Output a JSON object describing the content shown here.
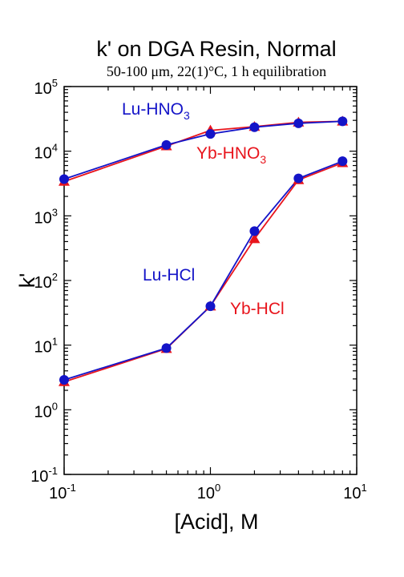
{
  "chart_data": {
    "type": "line",
    "title": "k' on DGA Resin, Normal",
    "subtitle": "50-100 μm, 22(1)°C, 1 h equilibration",
    "xlabel": "[Acid], M",
    "ylabel": "k'",
    "x_scale": "log",
    "y_scale": "log",
    "xlim": [
      0.1,
      10
    ],
    "ylim": [
      0.1,
      100000
    ],
    "x_ticks": [
      {
        "base": "10",
        "exp": "-1",
        "value": 0.1
      },
      {
        "base": "10",
        "exp": "0",
        "value": 1
      },
      {
        "base": "10",
        "exp": "1",
        "value": 10
      }
    ],
    "y_ticks": [
      {
        "base": "10",
        "exp": "-1",
        "value": 0.1
      },
      {
        "base": "10",
        "exp": "0",
        "value": 1
      },
      {
        "base": "10",
        "exp": "1",
        "value": 10
      },
      {
        "base": "10",
        "exp": "2",
        "value": 100
      },
      {
        "base": "10",
        "exp": "3",
        "value": 1000
      },
      {
        "base": "10",
        "exp": "4",
        "value": 10000
      },
      {
        "base": "10",
        "exp": "5",
        "value": 100000
      }
    ],
    "grid": false,
    "series": [
      {
        "id": "yb-hno3",
        "name": "Yb-HNO3",
        "color": "#e8141c",
        "marker": "triangle",
        "x": [
          0.1,
          0.5,
          1,
          2,
          4,
          8
        ],
        "y": [
          3400,
          12000,
          21000,
          24000,
          28000,
          29000
        ]
      },
      {
        "id": "lu-hno3",
        "name": "Lu-HNO3",
        "color": "#1414c8",
        "marker": "circle",
        "x": [
          0.1,
          0.5,
          1,
          2,
          4,
          8
        ],
        "y": [
          3700,
          12500,
          18500,
          23500,
          27000,
          29000
        ]
      },
      {
        "id": "yb-hcl",
        "name": "Yb-HCl",
        "color": "#e8141c",
        "marker": "triangle",
        "x": [
          0.1,
          0.5,
          1,
          2,
          4,
          8
        ],
        "y": [
          2.7,
          8.8,
          40,
          440,
          3600,
          6600
        ]
      },
      {
        "id": "lu-hcl",
        "name": "Lu-HCl",
        "color": "#1414c8",
        "marker": "circle",
        "x": [
          0.1,
          0.5,
          1,
          2,
          4,
          8
        ],
        "y": [
          2.9,
          9.0,
          40,
          580,
          3800,
          7000
        ]
      }
    ],
    "annotations": [
      {
        "series": "lu-hno3",
        "text": "Lu-HNO",
        "sub": "3",
        "color": "#1414c8"
      },
      {
        "series": "yb-hno3",
        "text": "Yb-HNO",
        "sub": "3",
        "color": "#e8141c"
      },
      {
        "series": "lu-hcl",
        "text": "Lu-HCl",
        "sub": "",
        "color": "#1414c8"
      },
      {
        "series": "yb-hcl",
        "text": "Yb-HCl",
        "sub": "",
        "color": "#e8141c"
      }
    ]
  }
}
